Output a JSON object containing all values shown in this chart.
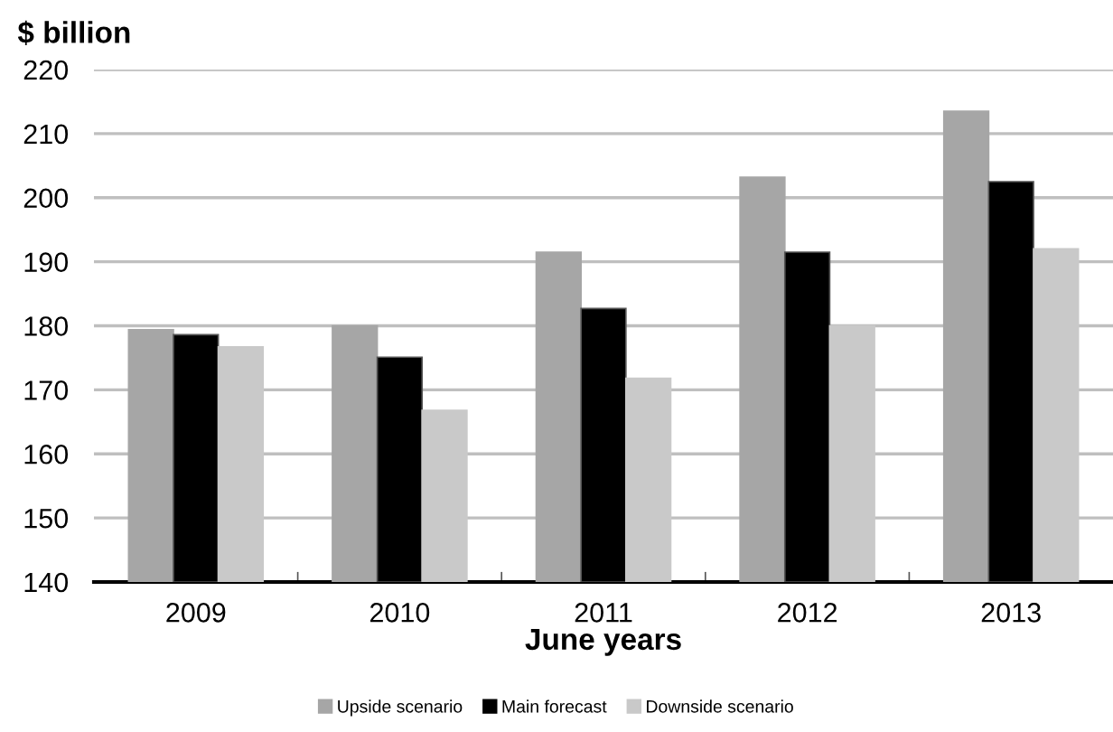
{
  "chart_data": {
    "type": "bar",
    "ylabel": "$ billion",
    "xlabel": "June years",
    "categories": [
      "2009",
      "2010",
      "2011",
      "2012",
      "2013"
    ],
    "series": [
      {
        "name": "Upside scenario",
        "color": "#a6a6a6",
        "values": [
          179.4,
          180.0,
          191.5,
          203.2,
          213.5
        ]
      },
      {
        "name": "Main forecast",
        "color": "#000000",
        "values": [
          178.6,
          175.1,
          182.7,
          191.5,
          202.5
        ]
      },
      {
        "name": "Downside scenario",
        "color": "#c9c9c9",
        "values": [
          176.7,
          166.8,
          171.8,
          180.0,
          192.0
        ]
      }
    ],
    "ylim": [
      140,
      220
    ],
    "yticks": [
      140,
      150,
      160,
      170,
      180,
      190,
      200,
      210,
      220
    ],
    "grid": "y",
    "legend": "bottom"
  }
}
